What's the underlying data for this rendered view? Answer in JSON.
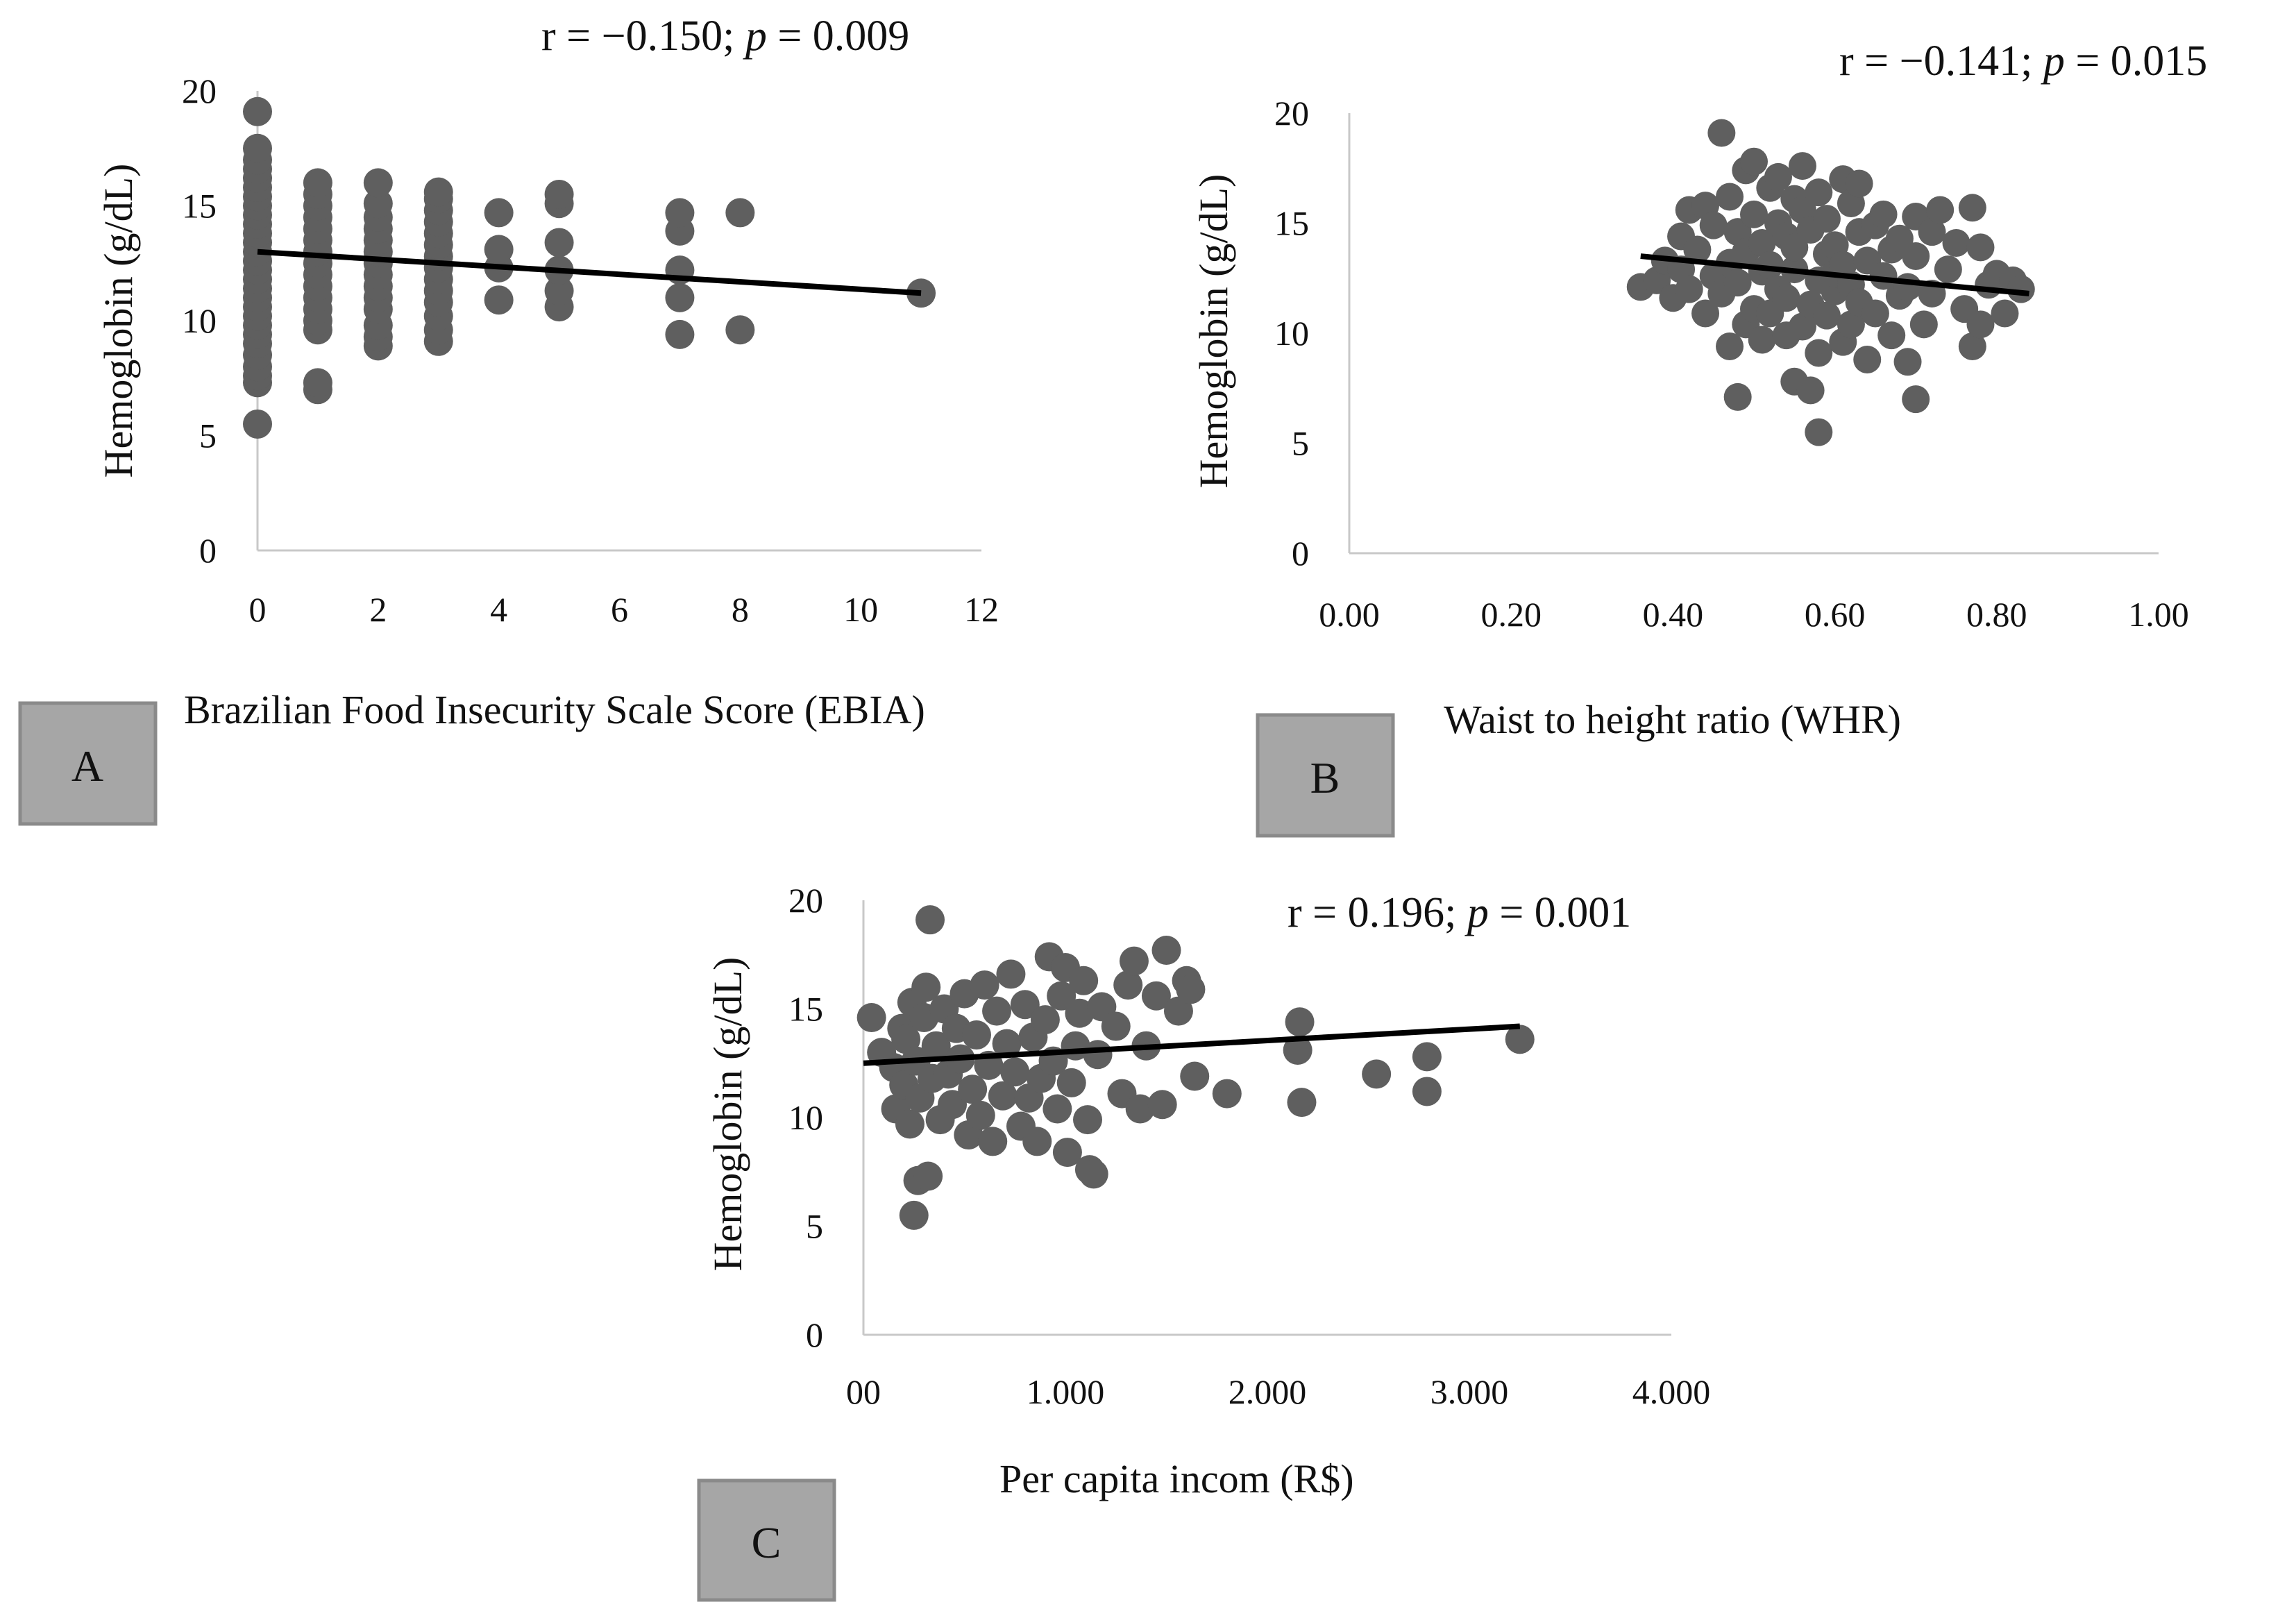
{
  "chart_data": [
    {
      "panel": "A",
      "type": "scatter",
      "title": "",
      "annotation": {
        "r": "r = −0.150; ",
        "p_sym": "p",
        "p_val": " = 0.009"
      },
      "xlabel": "Brazilian Food Insecurity Scale Score (EBIA)",
      "ylabel": "Hemoglobin  (g/dL)",
      "xlim": [
        0,
        12
      ],
      "ylim": [
        0,
        20
      ],
      "xticks": [
        0,
        2,
        4,
        6,
        8,
        10,
        12
      ],
      "xtick_labels": [
        "0",
        "2",
        "4",
        "6",
        "8",
        "10",
        "12"
      ],
      "yticks": [
        0,
        5,
        10,
        15,
        20
      ],
      "ytick_labels": [
        "0",
        "5",
        "10",
        "15",
        "20"
      ],
      "trendline": {
        "x": [
          0,
          11
        ],
        "y": [
          13.0,
          11.2
        ]
      },
      "points": [
        [
          0,
          5.5
        ],
        [
          0,
          7.3
        ],
        [
          0,
          7.6
        ],
        [
          0,
          8.0
        ],
        [
          0,
          8.5
        ],
        [
          0,
          9.0
        ],
        [
          0,
          9.4
        ],
        [
          0,
          9.8
        ],
        [
          0,
          10.2
        ],
        [
          0,
          10.6
        ],
        [
          0,
          11.0
        ],
        [
          0,
          11.4
        ],
        [
          0,
          11.8
        ],
        [
          0,
          12.2
        ],
        [
          0,
          12.6
        ],
        [
          0,
          13.0
        ],
        [
          0,
          13.4
        ],
        [
          0,
          13.8
        ],
        [
          0,
          14.2
        ],
        [
          0,
          14.6
        ],
        [
          0,
          15.0
        ],
        [
          0,
          15.4
        ],
        [
          0,
          15.8
        ],
        [
          0,
          16.2
        ],
        [
          0,
          16.6
        ],
        [
          0,
          17.0
        ],
        [
          0,
          17.5
        ],
        [
          0,
          19.1
        ],
        [
          1,
          7.0
        ],
        [
          1,
          7.3
        ],
        [
          1,
          9.6
        ],
        [
          1,
          10.0
        ],
        [
          1,
          10.5
        ],
        [
          1,
          11.0
        ],
        [
          1,
          11.5
        ],
        [
          1,
          12.0
        ],
        [
          1,
          12.5
        ],
        [
          1,
          13.0
        ],
        [
          1,
          13.5
        ],
        [
          1,
          14.0
        ],
        [
          1,
          14.5
        ],
        [
          1,
          15.0
        ],
        [
          1,
          15.5
        ],
        [
          1,
          16.0
        ],
        [
          2,
          8.9
        ],
        [
          2,
          9.3
        ],
        [
          2,
          9.8
        ],
        [
          2,
          10.5
        ],
        [
          2,
          11.0
        ],
        [
          2,
          11.5
        ],
        [
          2,
          12.0
        ],
        [
          2,
          12.5
        ],
        [
          2,
          13.0
        ],
        [
          2,
          13.5
        ],
        [
          2,
          14.0
        ],
        [
          2,
          14.5
        ],
        [
          2,
          15.1
        ],
        [
          2,
          16.0
        ],
        [
          3,
          9.1
        ],
        [
          3,
          9.6
        ],
        [
          3,
          10.2
        ],
        [
          3,
          10.8
        ],
        [
          3,
          11.3
        ],
        [
          3,
          11.8
        ],
        [
          3,
          12.3
        ],
        [
          3,
          12.8
        ],
        [
          3,
          13.3
        ],
        [
          3,
          13.8
        ],
        [
          3,
          14.3
        ],
        [
          3,
          14.8
        ],
        [
          3,
          15.3
        ],
        [
          3,
          15.6
        ],
        [
          4,
          10.9
        ],
        [
          4,
          12.3
        ],
        [
          4,
          13.1
        ],
        [
          4,
          14.7
        ],
        [
          5,
          10.6
        ],
        [
          5,
          11.3
        ],
        [
          5,
          12.2
        ],
        [
          5,
          13.4
        ],
        [
          5,
          15.1
        ],
        [
          5,
          15.5
        ],
        [
          7,
          9.4
        ],
        [
          7,
          11.0
        ],
        [
          7,
          12.2
        ],
        [
          7,
          13.9
        ],
        [
          7,
          14.7
        ],
        [
          8,
          9.6
        ],
        [
          8,
          14.7
        ],
        [
          11,
          11.2
        ]
      ]
    },
    {
      "panel": "B",
      "type": "scatter",
      "title": "",
      "annotation": {
        "r": "r = −0.141; ",
        "p_sym": "p",
        "p_val": " = 0.015"
      },
      "xlabel": "Waist to height ratio (WHR)",
      "ylabel": "Hemoglobin  (g/dL)",
      "xlim": [
        0,
        1
      ],
      "ylim": [
        0,
        20
      ],
      "xticks": [
        0,
        0.2,
        0.4,
        0.6,
        0.8,
        1.0
      ],
      "xtick_labels": [
        "0.00",
        "0.20",
        "0.40",
        "0.60",
        "0.80",
        "1.00"
      ],
      "yticks": [
        0,
        5,
        10,
        15,
        20
      ],
      "ytick_labels": [
        "0",
        "5",
        "10",
        "15",
        "20"
      ],
      "trendline": {
        "x": [
          0.36,
          0.84
        ],
        "y": [
          13.5,
          11.8
        ]
      },
      "points": [
        [
          0.36,
          12.1
        ],
        [
          0.38,
          12.4
        ],
        [
          0.39,
          13.3
        ],
        [
          0.4,
          11.6
        ],
        [
          0.41,
          12.9
        ],
        [
          0.41,
          14.4
        ],
        [
          0.42,
          15.6
        ],
        [
          0.42,
          12.0
        ],
        [
          0.43,
          13.8
        ],
        [
          0.44,
          15.8
        ],
        [
          0.44,
          10.9
        ],
        [
          0.45,
          12.6
        ],
        [
          0.45,
          14.9
        ],
        [
          0.46,
          19.1
        ],
        [
          0.46,
          11.8
        ],
        [
          0.47,
          13.2
        ],
        [
          0.47,
          9.4
        ],
        [
          0.47,
          16.2
        ],
        [
          0.48,
          7.1
        ],
        [
          0.48,
          12.3
        ],
        [
          0.48,
          14.6
        ],
        [
          0.49,
          17.4
        ],
        [
          0.49,
          10.4
        ],
        [
          0.49,
          13.7
        ],
        [
          0.5,
          17.8
        ],
        [
          0.5,
          15.4
        ],
        [
          0.5,
          11.1
        ],
        [
          0.51,
          12.8
        ],
        [
          0.51,
          9.7
        ],
        [
          0.51,
          14.1
        ],
        [
          0.52,
          16.6
        ],
        [
          0.52,
          13.1
        ],
        [
          0.52,
          10.9
        ],
        [
          0.53,
          15.0
        ],
        [
          0.53,
          12.0
        ],
        [
          0.53,
          17.1
        ],
        [
          0.54,
          9.9
        ],
        [
          0.54,
          14.4
        ],
        [
          0.54,
          11.6
        ],
        [
          0.55,
          7.8
        ],
        [
          0.55,
          16.1
        ],
        [
          0.55,
          12.9
        ],
        [
          0.55,
          13.9
        ],
        [
          0.56,
          10.3
        ],
        [
          0.56,
          15.6
        ],
        [
          0.56,
          17.6
        ],
        [
          0.57,
          7.4
        ],
        [
          0.57,
          11.3
        ],
        [
          0.57,
          14.7
        ],
        [
          0.58,
          5.5
        ],
        [
          0.58,
          12.4
        ],
        [
          0.58,
          9.1
        ],
        [
          0.58,
          16.4
        ],
        [
          0.59,
          13.6
        ],
        [
          0.59,
          10.8
        ],
        [
          0.59,
          15.2
        ],
        [
          0.6,
          11.9
        ],
        [
          0.6,
          14.0
        ],
        [
          0.6,
          12.7
        ],
        [
          0.61,
          9.6
        ],
        [
          0.61,
          13.1
        ],
        [
          0.61,
          17.0
        ],
        [
          0.62,
          10.4
        ],
        [
          0.62,
          15.9
        ],
        [
          0.62,
          12.2
        ],
        [
          0.63,
          14.6
        ],
        [
          0.63,
          11.4
        ],
        [
          0.63,
          16.8
        ],
        [
          0.64,
          8.8
        ],
        [
          0.64,
          13.3
        ],
        [
          0.65,
          14.9
        ],
        [
          0.65,
          10.9
        ],
        [
          0.66,
          12.6
        ],
        [
          0.66,
          15.4
        ],
        [
          0.67,
          9.9
        ],
        [
          0.67,
          13.8
        ],
        [
          0.68,
          11.7
        ],
        [
          0.68,
          14.3
        ],
        [
          0.69,
          8.7
        ],
        [
          0.69,
          12.1
        ],
        [
          0.7,
          7.0
        ],
        [
          0.7,
          13.5
        ],
        [
          0.7,
          15.3
        ],
        [
          0.71,
          10.4
        ],
        [
          0.72,
          14.6
        ],
        [
          0.72,
          11.8
        ],
        [
          0.73,
          15.6
        ],
        [
          0.74,
          12.9
        ],
        [
          0.75,
          14.1
        ],
        [
          0.76,
          11.1
        ],
        [
          0.77,
          15.7
        ],
        [
          0.77,
          9.4
        ],
        [
          0.78,
          13.9
        ],
        [
          0.78,
          10.4
        ],
        [
          0.79,
          12.2
        ],
        [
          0.8,
          12.7
        ],
        [
          0.81,
          10.9
        ],
        [
          0.82,
          12.4
        ],
        [
          0.83,
          12.0
        ]
      ]
    },
    {
      "panel": "C",
      "type": "scatter",
      "title": "",
      "annotation": {
        "r": "r = 0.196; ",
        "p_sym": "p",
        "p_val": " = 0.001"
      },
      "xlabel": "Per capita incom (R$)",
      "ylabel": "Hemoglobin  (g/dL)",
      "xlim": [
        0,
        4000
      ],
      "ylim": [
        0,
        20
      ],
      "xticks": [
        0,
        1000,
        2000,
        3000,
        4000
      ],
      "xtick_labels": [
        "00",
        "1.000",
        "2.000",
        "3.000",
        "4.000"
      ],
      "yticks": [
        0,
        5,
        10,
        15,
        20
      ],
      "ytick_labels": [
        "0",
        "5",
        "10",
        "15",
        "20"
      ],
      "trendline": {
        "x": [
          0,
          3250
        ],
        "y": [
          12.5,
          14.2
        ]
      },
      "points": [
        [
          40,
          14.6
        ],
        [
          90,
          13.0
        ],
        [
          150,
          12.3
        ],
        [
          160,
          10.4
        ],
        [
          190,
          14.1
        ],
        [
          200,
          11.5
        ],
        [
          210,
          13.6
        ],
        [
          230,
          9.7
        ],
        [
          240,
          15.3
        ],
        [
          250,
          5.5
        ],
        [
          260,
          12.6
        ],
        [
          270,
          7.1
        ],
        [
          280,
          10.9
        ],
        [
          300,
          14.6
        ],
        [
          310,
          16.0
        ],
        [
          320,
          7.3
        ],
        [
          330,
          19.1
        ],
        [
          340,
          11.8
        ],
        [
          360,
          13.3
        ],
        [
          380,
          9.9
        ],
        [
          400,
          15.0
        ],
        [
          420,
          12.0
        ],
        [
          440,
          10.6
        ],
        [
          460,
          14.1
        ],
        [
          480,
          12.7
        ],
        [
          500,
          15.7
        ],
        [
          520,
          9.2
        ],
        [
          540,
          11.3
        ],
        [
          560,
          13.8
        ],
        [
          580,
          10.1
        ],
        [
          600,
          16.1
        ],
        [
          620,
          12.4
        ],
        [
          640,
          8.9
        ],
        [
          660,
          14.9
        ],
        [
          690,
          11.0
        ],
        [
          710,
          13.4
        ],
        [
          730,
          16.6
        ],
        [
          750,
          12.1
        ],
        [
          780,
          9.6
        ],
        [
          800,
          15.2
        ],
        [
          820,
          10.9
        ],
        [
          840,
          13.7
        ],
        [
          860,
          8.9
        ],
        [
          880,
          11.8
        ],
        [
          900,
          14.5
        ],
        [
          920,
          17.4
        ],
        [
          940,
          12.6
        ],
        [
          960,
          10.4
        ],
        [
          980,
          15.6
        ],
        [
          1000,
          16.9
        ],
        [
          1010,
          8.4
        ],
        [
          1030,
          11.6
        ],
        [
          1050,
          13.3
        ],
        [
          1070,
          14.8
        ],
        [
          1090,
          16.3
        ],
        [
          1110,
          9.9
        ],
        [
          1120,
          7.6
        ],
        [
          1140,
          7.4
        ],
        [
          1160,
          12.9
        ],
        [
          1180,
          15.1
        ],
        [
          1250,
          14.2
        ],
        [
          1280,
          11.1
        ],
        [
          1310,
          16.1
        ],
        [
          1340,
          17.2
        ],
        [
          1370,
          10.4
        ],
        [
          1400,
          13.3
        ],
        [
          1450,
          15.6
        ],
        [
          1480,
          10.6
        ],
        [
          1500,
          17.7
        ],
        [
          1560,
          14.9
        ],
        [
          1600,
          16.3
        ],
        [
          1620,
          15.9
        ],
        [
          1640,
          11.9
        ],
        [
          1800,
          11.1
        ],
        [
          2150,
          13.1
        ],
        [
          2160,
          14.4
        ],
        [
          2170,
          10.7
        ],
        [
          2540,
          12.0
        ],
        [
          2790,
          12.8
        ],
        [
          2790,
          11.2
        ],
        [
          3250,
          13.6
        ]
      ]
    }
  ],
  "panel_labels": [
    "A",
    "B",
    "C"
  ]
}
